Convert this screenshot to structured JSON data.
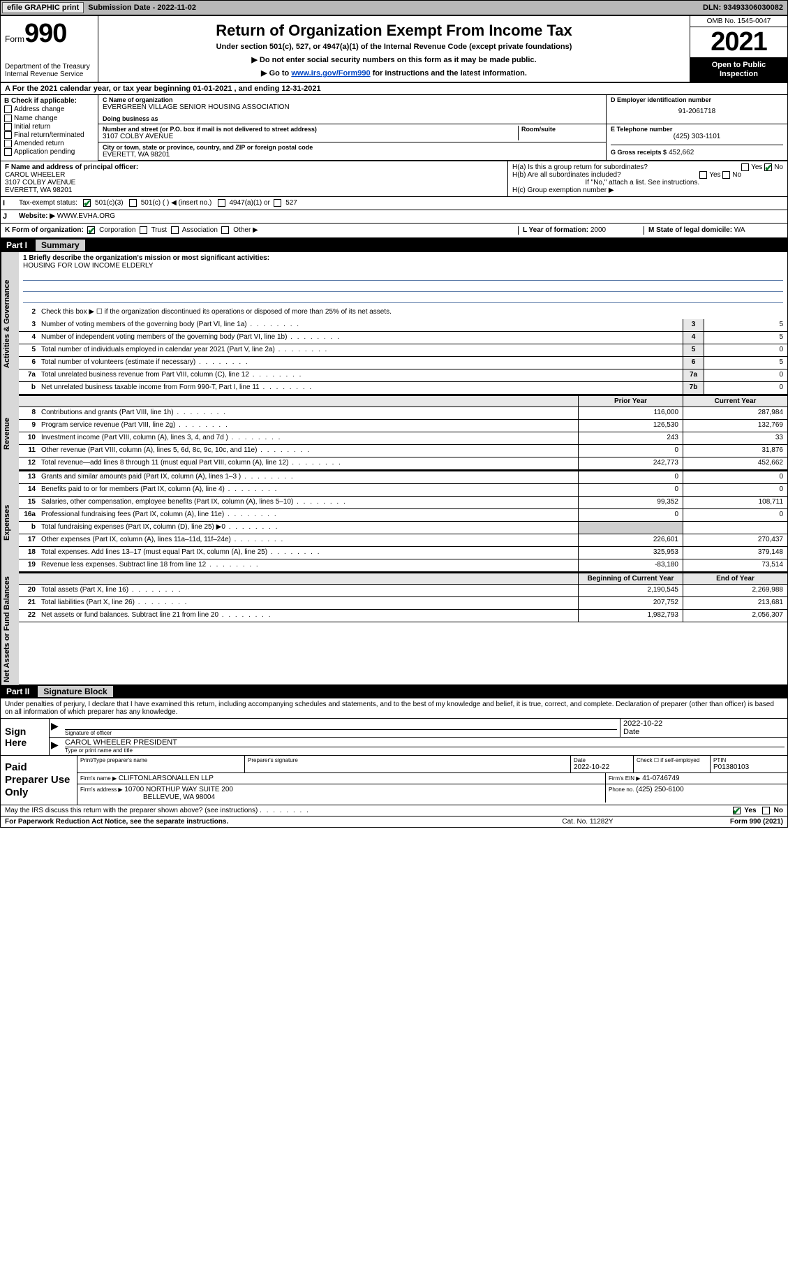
{
  "topbar": {
    "efile_btn": "efile GRAPHIC print",
    "sub_label": "Submission Date - 2022-11-02",
    "dln": "DLN: 93493306030082"
  },
  "header": {
    "form_word": "Form",
    "form_num": "990",
    "dept": "Department of the Treasury\nInternal Revenue Service",
    "title": "Return of Organization Exempt From Income Tax",
    "subtitle": "Under section 501(c), 527, or 4947(a)(1) of the Internal Revenue Code (except private foundations)",
    "note1": "▶ Do not enter social security numbers on this form as it may be made public.",
    "note2_pre": "▶ Go to ",
    "note2_link": "www.irs.gov/Form990",
    "note2_post": " for instructions and the latest information.",
    "omb": "OMB No. 1545-0047",
    "year": "2021",
    "open_public": "Open to Public Inspection"
  },
  "lineA": "A For the 2021 calendar year, or tax year beginning 01-01-2021   , and ending 12-31-2021",
  "boxB": {
    "label": "B Check if applicable:",
    "items": [
      "Address change",
      "Name change",
      "Initial return",
      "Final return/terminated",
      "Amended return",
      "Application pending"
    ]
  },
  "boxC": {
    "name_label": "C Name of organization",
    "name": "EVERGREEN VILLAGE SENIOR HOUSING ASSOCIATION",
    "dba_label": "Doing business as",
    "street_label": "Number and street (or P.O. box if mail is not delivered to street address)",
    "room_label": "Room/suite",
    "street": "3107 COLBY AVENUE",
    "city_label": "City or town, state or province, country, and ZIP or foreign postal code",
    "city": "EVERETT, WA  98201"
  },
  "boxD": {
    "label": "D Employer identification number",
    "val": "91-2061718"
  },
  "boxE": {
    "label": "E Telephone number",
    "val": "(425) 303-1101"
  },
  "boxG": {
    "label": "G Gross receipts $",
    "val": "452,662"
  },
  "boxF": {
    "label": "F  Name and address of principal officer:",
    "name": "CAROL WHEELER",
    "addr1": "3107 COLBY AVENUE",
    "addr2": "EVERETT, WA  98201"
  },
  "boxH": {
    "ha": "H(a)  Is this a group return for subordinates?",
    "ha_yes": "Yes",
    "ha_no": "No",
    "hb": "H(b)  Are all subordinates included?",
    "hb_yes": "Yes",
    "hb_no": "No",
    "hb_note": "If \"No,\" attach a list. See instructions.",
    "hc": "H(c)  Group exemption number ▶"
  },
  "rowI": {
    "label": "Tax-exempt status:",
    "o1": "501(c)(3)",
    "o2": "501(c) (  ) ◀ (insert no.)",
    "o3": "4947(a)(1) or",
    "o4": "527"
  },
  "rowJ": {
    "label": "Website: ▶",
    "val": "WWW.EVHA.ORG"
  },
  "rowK": {
    "label": "K Form of organization:",
    "o1": "Corporation",
    "o2": "Trust",
    "o3": "Association",
    "o4": "Other ▶",
    "year_label": "L Year of formation:",
    "year_val": "2000",
    "state_label": "M State of legal domicile:",
    "state_val": "WA"
  },
  "part1": {
    "num": "Part I",
    "title": "Summary"
  },
  "sideLabels": {
    "gov": "Activities & Governance",
    "rev": "Revenue",
    "exp": "Expenses",
    "net": "Net Assets or Fund Balances"
  },
  "mission": {
    "q": "1   Briefly describe the organization's mission or most significant activities:",
    "text": "HOUSING FOR LOW INCOME ELDERLY"
  },
  "gov": {
    "q2": "Check this box ▶ ☐  if the organization discontinued its operations or disposed of more than 25% of its net assets.",
    "rows": [
      {
        "n": "3",
        "t": "Number of voting members of the governing body (Part VI, line 1a)",
        "box": "3",
        "v": "5"
      },
      {
        "n": "4",
        "t": "Number of independent voting members of the governing body (Part VI, line 1b)",
        "box": "4",
        "v": "5"
      },
      {
        "n": "5",
        "t": "Total number of individuals employed in calendar year 2021 (Part V, line 2a)",
        "box": "5",
        "v": "0"
      },
      {
        "n": "6",
        "t": "Total number of volunteers (estimate if necessary)",
        "box": "6",
        "v": "5"
      },
      {
        "n": "7a",
        "t": "Total unrelated business revenue from Part VIII, column (C), line 12",
        "box": "7a",
        "v": "0"
      },
      {
        "n": "b",
        "t": "Net unrelated business taxable income from Form 990-T, Part I, line 11",
        "box": "7b",
        "v": "0"
      }
    ]
  },
  "colHeaders": {
    "prior": "Prior Year",
    "current": "Current Year",
    "begin": "Beginning of Current Year",
    "end": "End of Year"
  },
  "revenue": [
    {
      "n": "8",
      "t": "Contributions and grants (Part VIII, line 1h)",
      "v1": "116,000",
      "v2": "287,984"
    },
    {
      "n": "9",
      "t": "Program service revenue (Part VIII, line 2g)",
      "v1": "126,530",
      "v2": "132,769"
    },
    {
      "n": "10",
      "t": "Investment income (Part VIII, column (A), lines 3, 4, and 7d )",
      "v1": "243",
      "v2": "33"
    },
    {
      "n": "11",
      "t": "Other revenue (Part VIII, column (A), lines 5, 6d, 8c, 9c, 10c, and 11e)",
      "v1": "0",
      "v2": "31,876"
    },
    {
      "n": "12",
      "t": "Total revenue—add lines 8 through 11 (must equal Part VIII, column (A), line 12)",
      "v1": "242,773",
      "v2": "452,662"
    }
  ],
  "expenses": [
    {
      "n": "13",
      "t": "Grants and similar amounts paid (Part IX, column (A), lines 1–3 )",
      "v1": "0",
      "v2": "0"
    },
    {
      "n": "14",
      "t": "Benefits paid to or for members (Part IX, column (A), line 4)",
      "v1": "0",
      "v2": "0"
    },
    {
      "n": "15",
      "t": "Salaries, other compensation, employee benefits (Part IX, column (A), lines 5–10)",
      "v1": "99,352",
      "v2": "108,711"
    },
    {
      "n": "16a",
      "t": "Professional fundraising fees (Part IX, column (A), line 11e)",
      "v1": "0",
      "v2": "0"
    },
    {
      "n": "b",
      "t": "Total fundraising expenses (Part IX, column (D), line 25) ▶0",
      "shaded": true,
      "v1": "",
      "v2": ""
    },
    {
      "n": "17",
      "t": "Other expenses (Part IX, column (A), lines 11a–11d, 11f–24e)",
      "v1": "226,601",
      "v2": "270,437"
    },
    {
      "n": "18",
      "t": "Total expenses. Add lines 13–17 (must equal Part IX, column (A), line 25)",
      "v1": "325,953",
      "v2": "379,148"
    },
    {
      "n": "19",
      "t": "Revenue less expenses. Subtract line 18 from line 12",
      "v1": "-83,180",
      "v2": "73,514"
    }
  ],
  "netassets": [
    {
      "n": "20",
      "t": "Total assets (Part X, line 16)",
      "v1": "2,190,545",
      "v2": "2,269,988"
    },
    {
      "n": "21",
      "t": "Total liabilities (Part X, line 26)",
      "v1": "207,752",
      "v2": "213,681"
    },
    {
      "n": "22",
      "t": "Net assets or fund balances. Subtract line 21 from line 20",
      "v1": "1,982,793",
      "v2": "2,056,307"
    }
  ],
  "part2": {
    "num": "Part II",
    "title": "Signature Block"
  },
  "sigIntro": "Under penalties of perjury, I declare that I have examined this return, including accompanying schedules and statements, and to the best of my knowledge and belief, it is true, correct, and complete. Declaration of preparer (other than officer) is based on all information of which preparer has any knowledge.",
  "sign": {
    "label": "Sign Here",
    "sig_label": "Signature of officer",
    "date_label": "Date",
    "date": "2022-10-22",
    "name": "CAROL WHEELER  PRESIDENT",
    "name_label": "Type or print name and title"
  },
  "prep": {
    "label": "Paid Preparer Use Only",
    "h_name": "Print/Type preparer's name",
    "h_sig": "Preparer's signature",
    "h_date": "Date",
    "date": "2022-10-22",
    "h_check": "Check ☐ if self-employed",
    "h_ptin": "PTIN",
    "ptin": "P01380103",
    "firm_name_label": "Firm's name    ▶",
    "firm_name": "CLIFTONLARSONALLEN LLP",
    "firm_ein_label": "Firm's EIN ▶",
    "firm_ein": "41-0746749",
    "firm_addr_label": "Firm's address ▶",
    "firm_addr1": "10700 NORTHUP WAY SUITE 200",
    "firm_addr2": "BELLEVUE, WA  98004",
    "phone_label": "Phone no.",
    "phone": "(425) 250-6100"
  },
  "footer": {
    "discuss": "May the IRS discuss this return with the preparer shown above? (see instructions)",
    "yes": "Yes",
    "no": "No",
    "paperwork": "For Paperwork Reduction Act Notice, see the separate instructions.",
    "cat": "Cat. No. 11282Y",
    "form": "Form 990 (2021)"
  }
}
